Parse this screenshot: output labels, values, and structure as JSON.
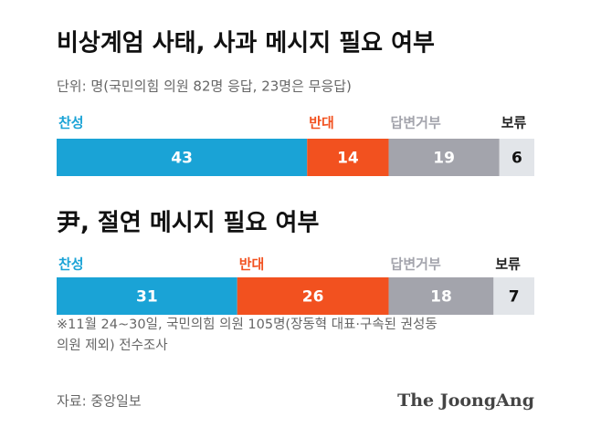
{
  "chart_data": [
    {
      "type": "stacked-bar",
      "title": "비상계엄 사태, 사과 메시지 필요 여부",
      "subtitle": "단위: 명(국민의힘 의원 82명 응답, 23명은 무응답)",
      "categories": [
        null
      ],
      "series": [
        {
          "name": "찬성",
          "color": "#1aa3d6",
          "values": [
            43
          ]
        },
        {
          "name": "반대",
          "color": "#f2511f",
          "values": [
            14
          ]
        },
        {
          "name": "답변거부",
          "color": "#a3a4ac",
          "values": [
            19
          ]
        },
        {
          "name": "보류",
          "color": "#e2e5e9",
          "values": [
            6
          ]
        }
      ]
    },
    {
      "type": "stacked-bar",
      "title": "尹, 절연 메시지 필요 여부",
      "categories": [
        null
      ],
      "series": [
        {
          "name": "찬성",
          "color": "#1aa3d6",
          "values": [
            31
          ]
        },
        {
          "name": "반대",
          "color": "#f2511f",
          "values": [
            26
          ]
        },
        {
          "name": "답변거부",
          "color": "#a3a4ac",
          "values": [
            18
          ]
        },
        {
          "name": "보류",
          "color": "#e2e5e9",
          "values": [
            7
          ]
        }
      ]
    }
  ],
  "note": "※11월 24~30일, 국민의힘 의원 105명(장동혁 대표·구속된 권성동 의원 제외) 전수조사",
  "source": "자료: 중앙일보",
  "brand": "The JoongAng"
}
